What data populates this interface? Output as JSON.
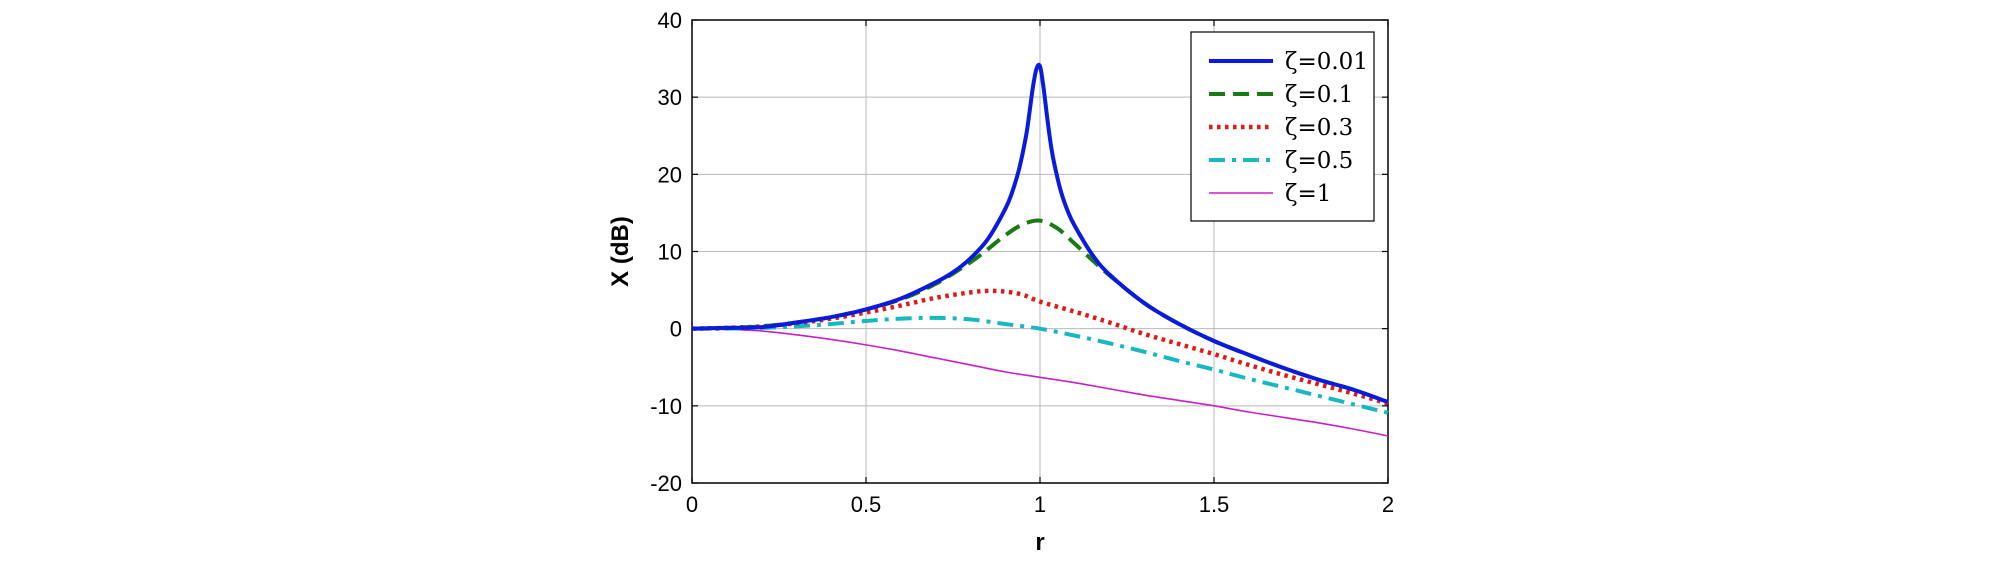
{
  "chart_data": {
    "type": "line",
    "title": "",
    "xlabel": "r",
    "ylabel": "X (dB)",
    "xlim": [
      0,
      2
    ],
    "ylim": [
      -20,
      40
    ],
    "xticks": [
      0,
      0.5,
      1,
      1.5,
      2
    ],
    "xtick_labels": [
      "0",
      "0.5",
      "1",
      "1.5",
      "2"
    ],
    "yticks": [
      -20,
      -10,
      0,
      10,
      20,
      30,
      40
    ],
    "ytick_labels": [
      "-20",
      "-10",
      "0",
      "10",
      "20",
      "30",
      "40"
    ],
    "grid": true,
    "legend_position": "top-right",
    "series": [
      {
        "name": "ζ=0.01",
        "color": "#0a1adf",
        "style": "solid",
        "x": [
          0,
          0.1,
          0.2,
          0.3,
          0.4,
          0.5,
          0.6,
          0.7,
          0.75,
          0.8,
          0.85,
          0.9,
          0.92,
          0.94,
          0.96,
          0.97,
          0.98,
          0.99,
          1.0,
          1.01,
          1.02,
          1.03,
          1.04,
          1.06,
          1.08,
          1.1,
          1.15,
          1.2,
          1.3,
          1.4,
          1.5,
          1.6,
          1.7,
          1.8,
          1.9,
          2.0
        ],
        "y": [
          0,
          0.1,
          0.2,
          0.8,
          1.5,
          2.5,
          3.9,
          6.0,
          7.3,
          9.1,
          11.6,
          15.5,
          17.7,
          20.7,
          25.0,
          28.1,
          31.4,
          33.7,
          34.0,
          31.3,
          27.6,
          24.2,
          21.6,
          17.8,
          15.2,
          13.3,
          9.6,
          7.0,
          3.3,
          0.6,
          -1.6,
          -3.4,
          -5.1,
          -6.6,
          -7.9,
          -9.5
        ]
      },
      {
        "name": "ζ=0.1",
        "color": "#1a7a14",
        "style": "dashed",
        "x": [
          0,
          0.1,
          0.2,
          0.3,
          0.4,
          0.5,
          0.6,
          0.7,
          0.8,
          0.85,
          0.9,
          0.95,
          1.0,
          1.05,
          1.1,
          1.15,
          1.2,
          1.3,
          1.4,
          1.5,
          1.6,
          1.7,
          1.8,
          1.9,
          2.0
        ],
        "y": [
          0,
          0.1,
          0.3,
          0.8,
          1.5,
          2.5,
          3.8,
          5.8,
          8.6,
          10.3,
          12.1,
          13.5,
          14.0,
          13.0,
          11.0,
          8.9,
          6.9,
          3.3,
          0.6,
          -1.6,
          -3.4,
          -5.1,
          -6.6,
          -7.9,
          -9.5
        ]
      },
      {
        "name": "ζ=0.3",
        "color": "#e01b14",
        "style": "dotted",
        "x": [
          0,
          0.1,
          0.2,
          0.3,
          0.4,
          0.5,
          0.6,
          0.7,
          0.8,
          0.85,
          0.9,
          0.95,
          1.0,
          1.1,
          1.2,
          1.3,
          1.4,
          1.5,
          1.6,
          1.7,
          1.8,
          1.9,
          2.0
        ],
        "y": [
          0,
          0.1,
          0.3,
          0.7,
          1.3,
          2.1,
          3.0,
          4.0,
          4.7,
          4.9,
          4.8,
          4.4,
          3.5,
          2.2,
          0.8,
          -0.7,
          -2.0,
          -3.3,
          -4.7,
          -6.0,
          -7.2,
          -8.4,
          -9.7
        ]
      },
      {
        "name": "ζ=0.5",
        "color": "#18b8c0",
        "style": "dashdot",
        "x": [
          0,
          0.1,
          0.2,
          0.3,
          0.4,
          0.5,
          0.6,
          0.7,
          0.8,
          0.9,
          1.0,
          1.1,
          1.2,
          1.3,
          1.4,
          1.5,
          1.6,
          1.7,
          1.8,
          1.9,
          2.0
        ],
        "y": [
          0,
          0.0,
          0.1,
          0.3,
          0.6,
          1.0,
          1.3,
          1.4,
          1.2,
          0.6,
          0.0,
          -0.9,
          -1.9,
          -3.0,
          -4.2,
          -5.3,
          -6.5,
          -7.6,
          -8.7,
          -9.8,
          -10.9
        ]
      },
      {
        "name": "ζ=1",
        "color": "#c820c8",
        "style": "thin",
        "x": [
          0,
          0.1,
          0.2,
          0.3,
          0.4,
          0.5,
          0.6,
          0.7,
          0.8,
          0.9,
          1.0,
          1.1,
          1.2,
          1.3,
          1.4,
          1.5,
          1.6,
          1.7,
          1.8,
          1.9,
          2.0
        ],
        "y": [
          0,
          -0.1,
          -0.3,
          -0.8,
          -1.4,
          -2.1,
          -2.9,
          -3.8,
          -4.7,
          -5.6,
          -6.3,
          -7.0,
          -7.8,
          -8.6,
          -9.3,
          -10.0,
          -10.8,
          -11.5,
          -12.2,
          -13.0,
          -13.9
        ]
      }
    ]
  }
}
